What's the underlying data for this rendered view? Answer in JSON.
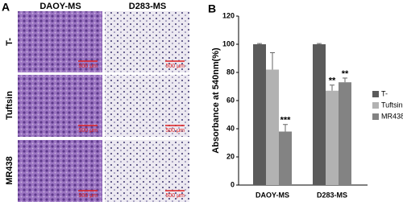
{
  "panel_a": {
    "label": "A",
    "columns": [
      "DAOY-MS",
      "D283-MS"
    ],
    "rows": [
      "T-",
      "Tuftsin",
      "MR438"
    ],
    "scale_labels": [
      "500 μm",
      "500 μm",
      "500 μm",
      "500 μm",
      "500 μm",
      "500 μm"
    ]
  },
  "panel_b_label": "B",
  "chart_data": {
    "type": "bar",
    "y_label": "Absorbance at 540nm(%)",
    "categories": [
      "DAOY-MS",
      "D283-MS"
    ],
    "series": [
      {
        "name": "T-",
        "color": "#5b5b5b",
        "values": [
          100,
          100
        ],
        "errors": [
          0.5,
          0.5
        ],
        "significance": [
          null,
          null
        ]
      },
      {
        "name": "Tuftsin",
        "color": "#b2b2b2",
        "values": [
          82,
          67
        ],
        "errors": [
          12,
          4
        ],
        "significance": [
          null,
          "**"
        ]
      },
      {
        "name": "MR438",
        "color": "#838383",
        "values": [
          38,
          73
        ],
        "errors": [
          5,
          3
        ],
        "significance": [
          "***",
          "**"
        ]
      }
    ],
    "ylim": [
      0,
      120
    ],
    "yticks": [
      0,
      20,
      40,
      60,
      80,
      100,
      120
    ],
    "grid": false,
    "legend": "right"
  }
}
